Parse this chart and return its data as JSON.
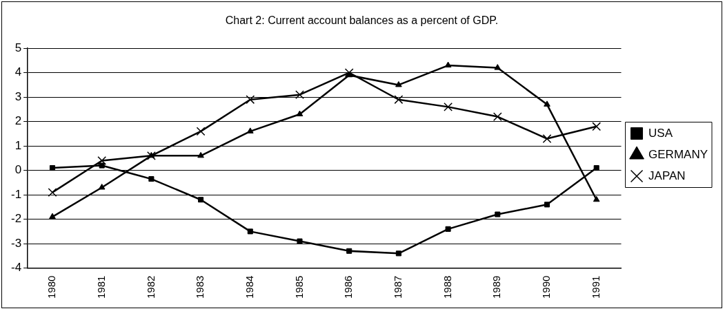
{
  "chart_data": {
    "type": "line",
    "title": "Chart 2: Current account balances as a percent of GDP.",
    "categories": [
      "1980",
      "1981",
      "1982",
      "1983",
      "1984",
      "1985",
      "1986",
      "1987",
      "1988",
      "1989",
      "1990",
      "1991"
    ],
    "series": [
      {
        "name": "USA",
        "color": "#000000",
        "marker": "square",
        "values": [
          0.1,
          0.2,
          -0.35,
          -1.2,
          -2.5,
          -2.9,
          -3.3,
          -3.4,
          -2.4,
          -1.8,
          -1.4,
          0.1
        ]
      },
      {
        "name": "GERMANY",
        "color": "#000000",
        "marker": "triangle",
        "values": [
          -1.9,
          -0.7,
          0.6,
          0.6,
          1.6,
          2.3,
          3.9,
          3.5,
          4.3,
          4.2,
          2.7,
          -1.2
        ]
      },
      {
        "name": "JAPAN",
        "color": "#000000",
        "marker": "cross",
        "values": [
          -0.9,
          0.4,
          0.6,
          1.6,
          2.9,
          3.1,
          4.0,
          2.9,
          2.6,
          2.2,
          1.3,
          1.8
        ]
      }
    ],
    "ylim": [
      -4,
      5
    ],
    "yticks": [
      -4,
      -3,
      -2,
      -1,
      0,
      1,
      2,
      3,
      4,
      5
    ],
    "grid": "y",
    "legend": "right",
    "line_style": "solid"
  }
}
